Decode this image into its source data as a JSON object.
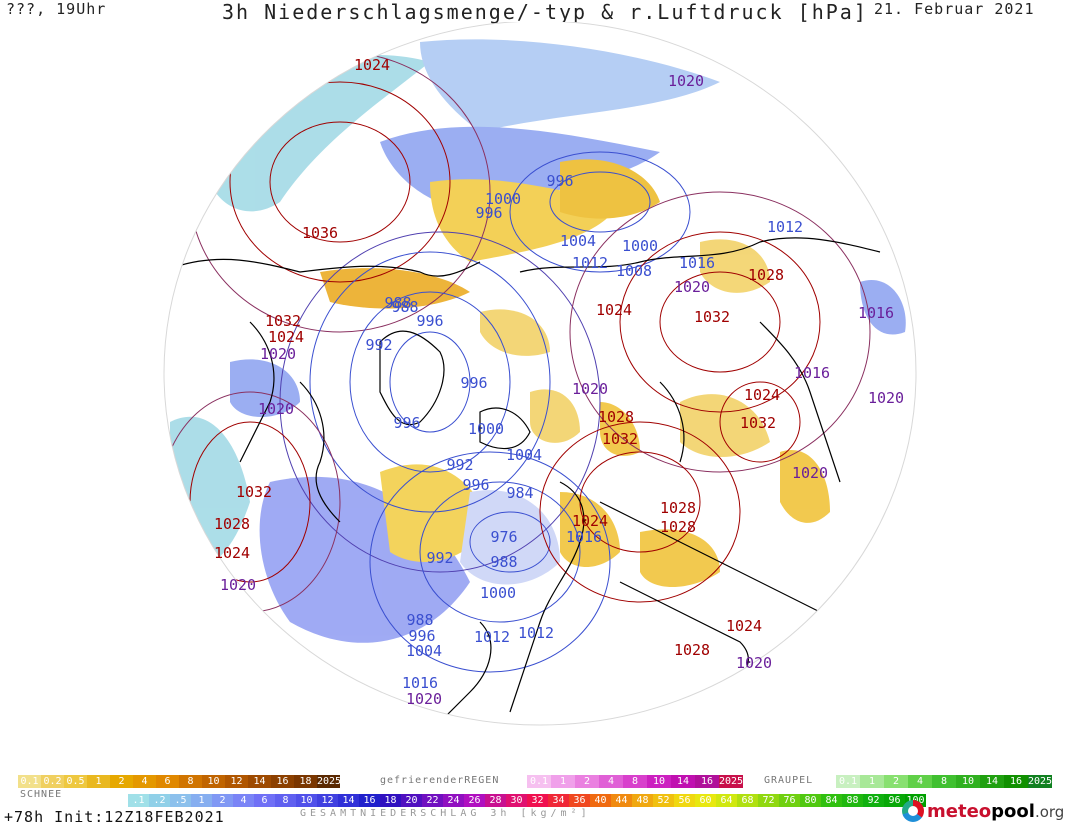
{
  "header": {
    "left": "???, 19Uhr",
    "title": "3h Niederschlagsmenge/-typ & r.Luftdruck [hPa]",
    "date": "21. Februar 2021"
  },
  "isobar_labels": [
    {
      "text": "1024",
      "color": "#a00000"
    },
    {
      "text": "1020",
      "color": "#6a1f9a"
    },
    {
      "text": "1036",
      "color": "#a00000"
    },
    {
      "text": "1000",
      "color": "#3a4fd0"
    },
    {
      "text": "996",
      "color": "#3a4fd0"
    },
    {
      "text": "996",
      "color": "#3a4fd0"
    },
    {
      "text": "988",
      "color": "#3a4fd0"
    },
    {
      "text": "1004",
      "color": "#3a4fd0"
    },
    {
      "text": "1012",
      "color": "#3a4fd0"
    },
    {
      "text": "1008",
      "color": "#3a4fd0"
    },
    {
      "text": "1000",
      "color": "#3a4fd0"
    },
    {
      "text": "1016",
      "color": "#3a4fd0"
    },
    {
      "text": "1012",
      "color": "#3a4fd0"
    },
    {
      "text": "1020",
      "color": "#6a1f9a"
    },
    {
      "text": "1028",
      "color": "#a00000"
    },
    {
      "text": "1032",
      "color": "#a00000"
    },
    {
      "text": "1024",
      "color": "#a00000"
    },
    {
      "text": "1016",
      "color": "#6a1f9a"
    },
    {
      "text": "1032",
      "color": "#a00000"
    },
    {
      "text": "1024",
      "color": "#a00000"
    },
    {
      "text": "988",
      "color": "#3a4fd0"
    },
    {
      "text": "996",
      "color": "#3a4fd0"
    },
    {
      "text": "992",
      "color": "#3a4fd0"
    },
    {
      "text": "1020",
      "color": "#6a1f9a"
    },
    {
      "text": "1020",
      "color": "#6a1f9a"
    },
    {
      "text": "996",
      "color": "#3a4fd0"
    },
    {
      "text": "996",
      "color": "#3a4fd0"
    },
    {
      "text": "1000",
      "color": "#3a4fd0"
    },
    {
      "text": "1004",
      "color": "#3a4fd0"
    },
    {
      "text": "992",
      "color": "#3a4fd0"
    },
    {
      "text": "996",
      "color": "#3a4fd0"
    },
    {
      "text": "984",
      "color": "#3a4fd0"
    },
    {
      "text": "1020",
      "color": "#6a1f9a"
    },
    {
      "text": "1028",
      "color": "#a00000"
    },
    {
      "text": "1032",
      "color": "#a00000"
    },
    {
      "text": "1016",
      "color": "#6a1f9a"
    },
    {
      "text": "1024",
      "color": "#a00000"
    },
    {
      "text": "1032",
      "color": "#a00000"
    },
    {
      "text": "1020",
      "color": "#6a1f9a"
    },
    {
      "text": "1020",
      "color": "#6a1f9a"
    },
    {
      "text": "1032",
      "color": "#a00000"
    },
    {
      "text": "1028",
      "color": "#a00000"
    },
    {
      "text": "1024",
      "color": "#a00000"
    },
    {
      "text": "1020",
      "color": "#6a1f9a"
    },
    {
      "text": "1024",
      "color": "#a00000"
    },
    {
      "text": "1016",
      "color": "#3a4fd0"
    },
    {
      "text": "1028",
      "color": "#a00000"
    },
    {
      "text": "1028",
      "color": "#a00000"
    },
    {
      "text": "976",
      "color": "#3a4fd0"
    },
    {
      "text": "988",
      "color": "#3a4fd0"
    },
    {
      "text": "992",
      "color": "#3a4fd0"
    },
    {
      "text": "1000",
      "color": "#3a4fd0"
    },
    {
      "text": "988",
      "color": "#3a4fd0"
    },
    {
      "text": "996",
      "color": "#3a4fd0"
    },
    {
      "text": "1004",
      "color": "#3a4fd0"
    },
    {
      "text": "1012",
      "color": "#3a4fd0"
    },
    {
      "text": "1012",
      "color": "#3a4fd0"
    },
    {
      "text": "1016",
      "color": "#3a4fd0"
    },
    {
      "text": "1020",
      "color": "#6a1f9a"
    },
    {
      "text": "1024",
      "color": "#a00000"
    },
    {
      "text": "1028",
      "color": "#a00000"
    },
    {
      "text": "1020",
      "color": "#6a1f9a"
    }
  ],
  "legend": {
    "rain_values": [
      "0.1",
      "0.2",
      "0.5",
      "1",
      "2",
      "4",
      "6",
      "8",
      "10",
      "12",
      "14",
      "16",
      "18",
      "2025+"
    ],
    "rain_colors": [
      "#f2e08a",
      "#f0d060",
      "#eec840",
      "#e9b820",
      "#e6a800",
      "#e49800",
      "#e08800",
      "#d07400",
      "#c06400",
      "#b05600",
      "#9e4a00",
      "#8c4000",
      "#7a3600",
      "#5a2800"
    ],
    "freezing_label": "gefrierenderREGEN",
    "freezing_values": [
      "0.1",
      "1",
      "2",
      "4",
      "8",
      "10",
      "14",
      "16",
      "2025+"
    ],
    "freezing_colors": [
      "#f6c0f0",
      "#f0a0ea",
      "#ea80e0",
      "#e060d6",
      "#d840cc",
      "#cc20c0",
      "#c010b0",
      "#b0109a",
      "#c8104a"
    ],
    "graupel_label": "GRAUPEL",
    "graupel_values": [
      "0.1",
      "1",
      "2",
      "4",
      "8",
      "10",
      "14",
      "16",
      "2025+"
    ],
    "graupel_colors": [
      "#c8f0c0",
      "#a8e898",
      "#88e070",
      "#60d048",
      "#40c030",
      "#30b020",
      "#20a010",
      "#109000",
      "#108020"
    ],
    "snow_label": "SCHNEE",
    "snow_values": [
      ".1",
      ".2",
      ".5",
      "1",
      "2",
      "4",
      "6",
      "8",
      "10",
      "12",
      "14",
      "16",
      "18",
      "20",
      "22",
      "24",
      "26",
      "28",
      "30",
      "32",
      "34",
      "36",
      "40",
      "44",
      "48",
      "52",
      "56",
      "60",
      "64",
      "68",
      "72",
      "76",
      "80",
      "84",
      "88",
      "92",
      "96",
      "100"
    ],
    "snow_colors": [
      "#a0e0e8",
      "#90d0e8",
      "#8cc0ec",
      "#86aef0",
      "#8098f4",
      "#7a84f6",
      "#7070f6",
      "#6060f0",
      "#5050ea",
      "#4040e0",
      "#3030d8",
      "#2020cc",
      "#3010c0",
      "#5010c0",
      "#7010c0",
      "#9010c0",
      "#b010c0",
      "#c81090",
      "#e01070",
      "#f01050",
      "#f02838",
      "#f04820",
      "#f06a10",
      "#f08a10",
      "#f0a810",
      "#f0c010",
      "#f0d810",
      "#e8e810",
      "#d0e810",
      "#b0e010",
      "#90d810",
      "#70d010",
      "#50c810",
      "#30c010",
      "#20b810",
      "#10b010",
      "#08a808",
      "#00a000"
    ]
  },
  "footer": {
    "run": "+78h  Init:12Z18FEB2021",
    "caption": "GESAMTNIEDERSCHLAG 3h [kg/m²]"
  },
  "logo": {
    "part1": "meteo",
    "part2": "pool",
    "part3": ".org"
  }
}
